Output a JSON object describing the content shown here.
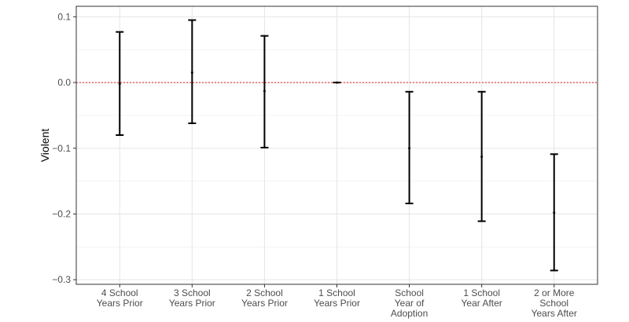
{
  "chart_data": {
    "type": "errorbar",
    "y_label": "Violent",
    "categories": [
      "4 School\nYears Prior",
      "3 School\nYears Prior",
      "2 School\nYears Prior",
      "1 School\nYears Prior",
      "School\nYear of\nAdoption",
      "1 School\nYear After",
      "2 or More\nSchool\nYears After"
    ],
    "values": [
      -0.002,
      0.015,
      -0.013,
      0,
      -0.1,
      -0.113,
      -0.198
    ],
    "lower": [
      -0.08,
      -0.062,
      -0.099,
      0,
      -0.184,
      -0.211,
      -0.286
    ],
    "upper": [
      0.077,
      0.095,
      0.071,
      0,
      -0.014,
      -0.014,
      -0.109
    ],
    "color": "#000000",
    "ylim": [
      -0.307,
      0.116
    ],
    "yticks": [
      {
        "value": 0.1,
        "label": "0.1"
      },
      {
        "value": 0,
        "label": "0.0"
      },
      {
        "value": -0.1,
        "label": "−0.1"
      },
      {
        "value": -0.2,
        "label": "−0.2"
      },
      {
        "value": -0.3,
        "label": "−0.3"
      }
    ],
    "minor_yticks": [
      0.05,
      -0.05,
      -0.15,
      -0.25
    ],
    "reference_line": 0,
    "reference_color": "#e41a1c",
    "grid": true
  }
}
